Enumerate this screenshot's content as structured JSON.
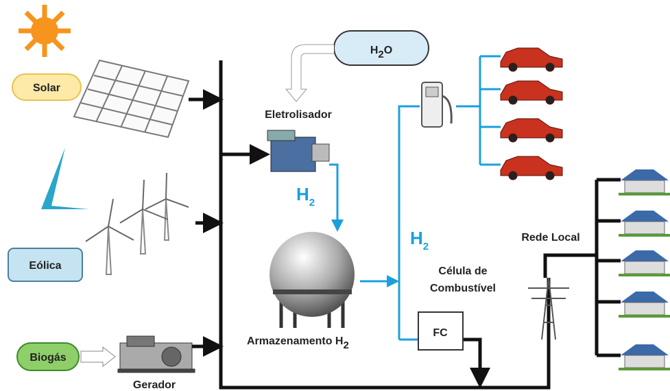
{
  "sources": [
    {
      "label": "Solar"
    },
    {
      "label": "Eólica"
    },
    {
      "label": "Biogás"
    }
  ],
  "generator": "Gerador",
  "water": {
    "main": "H",
    "sub": "2",
    "tail": "O"
  },
  "electrolyzer": "Eletrolisador",
  "hydrogen_labels": [
    {
      "main": "H",
      "sub": "2"
    },
    {
      "main": "H",
      "sub": "2"
    }
  ],
  "storage": {
    "main": "Armazenamento H",
    "sub": "2"
  },
  "fuel_cell": {
    "title_lines": [
      "Célula de",
      "Combustível"
    ],
    "box": "FC"
  },
  "grid": "Rede Local"
}
